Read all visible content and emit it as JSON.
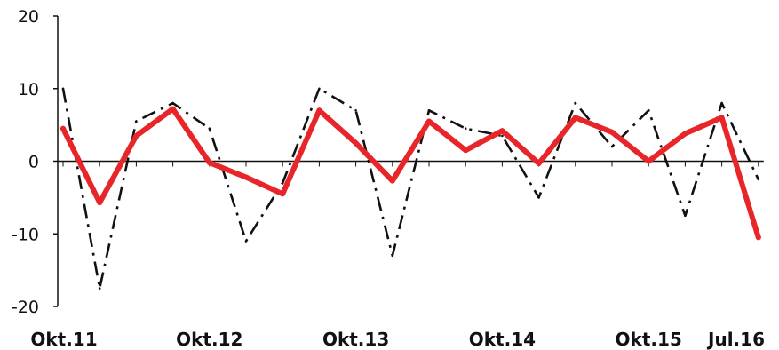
{
  "chart_data": {
    "type": "line",
    "ylim": [
      -20,
      20
    ],
    "yticks": [
      20,
      10,
      0,
      -10,
      -20
    ],
    "xticks": [
      {
        "label": "Okt.11",
        "index": 0
      },
      {
        "label": "Okt.12",
        "index": 4
      },
      {
        "label": "Okt.13",
        "index": 8
      },
      {
        "label": "Okt.14",
        "index": 12
      },
      {
        "label": "Okt.15",
        "index": 16
      },
      {
        "label": "Jul.16",
        "index": 19
      }
    ],
    "grid": false,
    "series": [
      {
        "style": "solid",
        "color": "#e8262a",
        "values": [
          4.5,
          -5.7,
          3.5,
          7.2,
          -0.2,
          -2.2,
          -4.5,
          7.0,
          2.5,
          -2.7,
          5.5,
          1.5,
          4.2,
          -0.3,
          6.0,
          4.0,
          0.0,
          3.8,
          6.0,
          -10.5
        ]
      },
      {
        "style": "dash-dot",
        "color": "#111111",
        "values": [
          10.0,
          -17.5,
          5.5,
          8.0,
          4.5,
          -11.0,
          -3.0,
          10.0,
          7.0,
          -13.0,
          7.0,
          4.5,
          3.5,
          -5.0,
          8.0,
          2.0,
          7.0,
          -7.5,
          8.0,
          -2.5
        ]
      }
    ]
  }
}
